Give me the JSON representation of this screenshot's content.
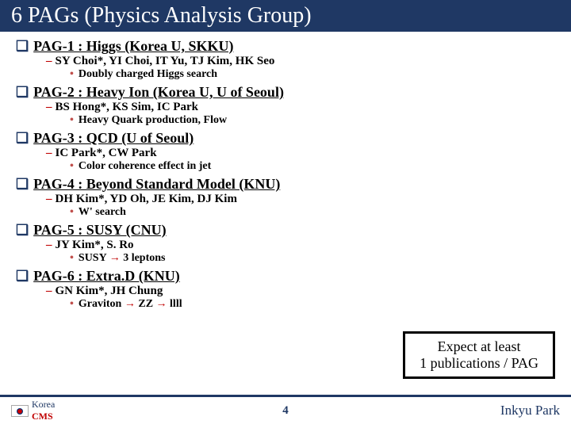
{
  "title": "6 PAGs (Physics Analysis Group)",
  "pags": [
    {
      "name": "PAG-1 : Higgs (Korea U, SKKU)",
      "people": "SY Choi*, YI Choi, IT Yu, TJ Kim, HK Seo",
      "topic": "Doubly charged Higgs search"
    },
    {
      "name": "PAG-2 : Heavy Ion (Korea U, U of Seoul)",
      "people": "BS Hong*, KS Sim, IC Park",
      "topic": "Heavy Quark production, Flow"
    },
    {
      "name": "PAG-3 : QCD (U of Seoul)",
      "people": "IC Park*, CW Park",
      "topic": "Color coherence effect in jet"
    },
    {
      "name": "PAG-4 : Beyond Standard Model (KNU)",
      "people": "DH Kim*, YD Oh, JE Kim, DJ Kim",
      "topic": "W' search"
    },
    {
      "name": "PAG-5 : SUSY (CNU)",
      "people": "JY Kim*, S. Ro",
      "topic": "SUSY → 3 leptons",
      "topicHtml": "SUSY <span class='arrow'>→</span> 3 leptons"
    },
    {
      "name": "PAG-6 : Extra.D (KNU)",
      "people": "GN Kim*, JH Chung",
      "topic": "Graviton → ZZ → llll",
      "topicHtml": "Graviton <span class='arrow'>→</span> ZZ <span class='arrow'>→</span> llll"
    }
  ],
  "expectBox": {
    "line1": "Expect at least",
    "line2": "1 publications / PAG"
  },
  "footer": {
    "pageNum": "4",
    "author": "Inkyu Park",
    "logoKorea": "Korea",
    "logoCMS": "CMS"
  },
  "colors": {
    "titleBg": "#1f3864",
    "accent": "#c00000",
    "bulletDot": "#c0504d"
  }
}
